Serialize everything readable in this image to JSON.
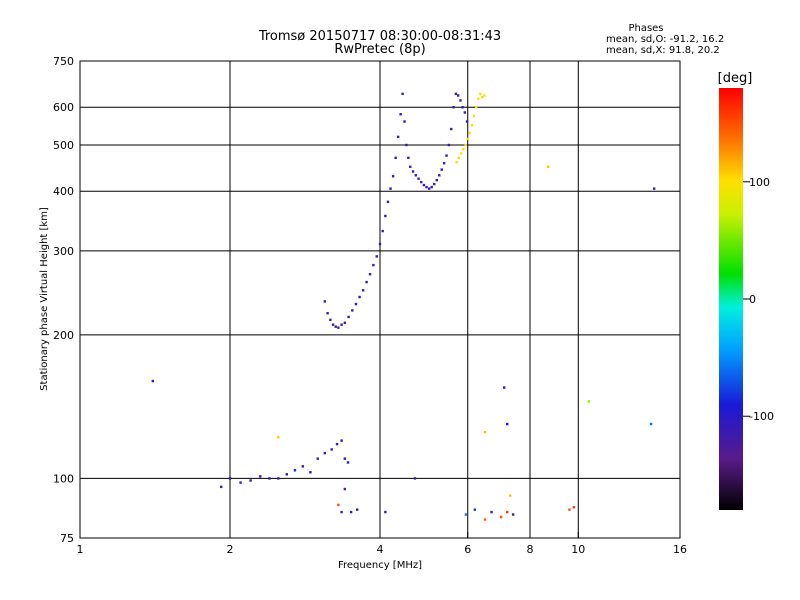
{
  "title_line1": "Tromsø 20150717 08:30:00-08:31:43",
  "title_line2": "RwPretec (8p)",
  "phases_box": {
    "heading": "Phases",
    "line_o": "mean, sd,O: -91.2, 16.2",
    "line_x": "mean, sd,X:  91.8, 20.2"
  },
  "colorbar": {
    "unit_label": "[deg]",
    "ticks": [
      {
        "value": 100,
        "label": "100"
      },
      {
        "value": 0,
        "label": "0"
      },
      {
        "value": -100,
        "label": "-100"
      }
    ],
    "range": [
      -180,
      180
    ]
  },
  "chart_data": {
    "type": "scatter",
    "xlabel": "Frequency [MHz]",
    "ylabel": "Stationary phase Virtual Height [km]",
    "x_scale": "log2",
    "y_scale": "log",
    "xlim": [
      1,
      16
    ],
    "ylim": [
      75,
      750
    ],
    "grid": true,
    "x_ticks": [
      {
        "value": 1,
        "label": "1"
      },
      {
        "value": 2,
        "label": "2"
      },
      {
        "value": 4,
        "label": "4"
      },
      {
        "value": 6,
        "label": "6"
      },
      {
        "value": 8,
        "label": "8"
      },
      {
        "value": 10,
        "label": "10"
      },
      {
        "value": 16,
        "label": "16"
      }
    ],
    "y_ticks": [
      {
        "value": 75,
        "label": "75"
      },
      {
        "value": 100,
        "label": "100"
      },
      {
        "value": 200,
        "label": "200"
      },
      {
        "value": 300,
        "label": "300"
      },
      {
        "value": 400,
        "label": "400"
      },
      {
        "value": 500,
        "label": "500"
      },
      {
        "value": 600,
        "label": "600"
      },
      {
        "value": 750,
        "label": "750"
      }
    ],
    "points_phase_deg": [
      [
        3.1,
        235,
        -118
      ],
      [
        3.14,
        222,
        -115
      ],
      [
        3.18,
        215,
        -120
      ],
      [
        3.22,
        210,
        -112
      ],
      [
        3.26,
        208,
        -118
      ],
      [
        3.3,
        207,
        -110
      ],
      [
        3.35,
        210,
        -116
      ],
      [
        3.4,
        212,
        -120
      ],
      [
        3.46,
        218,
        -112
      ],
      [
        3.52,
        225,
        -118
      ],
      [
        3.58,
        232,
        -110
      ],
      [
        3.64,
        240,
        -115
      ],
      [
        3.7,
        248,
        -118
      ],
      [
        3.76,
        258,
        -112
      ],
      [
        3.82,
        268,
        -116
      ],
      [
        3.88,
        280,
        -110
      ],
      [
        3.94,
        292,
        -118
      ],
      [
        4.0,
        310,
        -114
      ],
      [
        4.05,
        330,
        -120
      ],
      [
        4.1,
        355,
        -112
      ],
      [
        4.15,
        380,
        -118
      ],
      [
        4.2,
        405,
        -110
      ],
      [
        4.25,
        430,
        -116
      ],
      [
        4.3,
        470,
        -112
      ],
      [
        4.35,
        520,
        -118
      ],
      [
        4.4,
        580,
        -114
      ],
      [
        4.44,
        640,
        -116
      ],
      [
        4.48,
        560,
        -110
      ],
      [
        4.52,
        500,
        -118
      ],
      [
        4.56,
        470,
        -112
      ],
      [
        4.6,
        450,
        -116
      ],
      [
        4.66,
        440,
        -118
      ],
      [
        4.72,
        432,
        -110
      ],
      [
        4.78,
        425,
        -114
      ],
      [
        4.84,
        418,
        -118
      ],
      [
        4.9,
        412,
        -112
      ],
      [
        4.96,
        408,
        -116
      ],
      [
        5.02,
        405,
        -110
      ],
      [
        5.08,
        408,
        -118
      ],
      [
        5.14,
        414,
        -114
      ],
      [
        5.2,
        422,
        -112
      ],
      [
        5.26,
        432,
        -118
      ],
      [
        5.32,
        444,
        -110
      ],
      [
        5.38,
        458,
        -116
      ],
      [
        5.44,
        475,
        -112
      ],
      [
        5.5,
        500,
        -118
      ],
      [
        5.56,
        540,
        -114
      ],
      [
        5.62,
        600,
        -110
      ],
      [
        5.68,
        640,
        -116
      ],
      [
        5.74,
        635,
        -118
      ],
      [
        5.8,
        620,
        -112
      ],
      [
        5.86,
        600,
        -110
      ],
      [
        5.92,
        585,
        -116
      ],
      [
        5.98,
        560,
        -118
      ],
      [
        5.7,
        460,
        100
      ],
      [
        5.76,
        470,
        105
      ],
      [
        5.82,
        480,
        98
      ],
      [
        5.88,
        490,
        102
      ],
      [
        5.94,
        500,
        100
      ],
      [
        6.0,
        515,
        104
      ],
      [
        6.06,
        530,
        99
      ],
      [
        6.12,
        550,
        103
      ],
      [
        6.18,
        575,
        100
      ],
      [
        6.24,
        600,
        102
      ],
      [
        6.3,
        625,
        98
      ],
      [
        6.36,
        640,
        101
      ],
      [
        6.42,
        630,
        104
      ],
      [
        6.48,
        635,
        99
      ],
      [
        1.4,
        160,
        -95
      ],
      [
        1.92,
        96,
        -110
      ],
      [
        2.0,
        100,
        -100
      ],
      [
        2.1,
        98,
        -118
      ],
      [
        2.2,
        99,
        -105
      ],
      [
        2.3,
        101,
        -115
      ],
      [
        2.4,
        100,
        -90
      ],
      [
        2.5,
        100,
        -110
      ],
      [
        2.6,
        102,
        -100
      ],
      [
        2.7,
        104,
        -85
      ],
      [
        2.8,
        106,
        -112
      ],
      [
        2.9,
        103,
        -95
      ],
      [
        3.0,
        110,
        -115
      ],
      [
        3.1,
        113,
        -110
      ],
      [
        3.2,
        115,
        -118
      ],
      [
        3.28,
        118,
        -112
      ],
      [
        3.35,
        120,
        -116
      ],
      [
        3.4,
        110,
        -100
      ],
      [
        3.45,
        108,
        -95
      ],
      [
        2.5,
        122,
        110
      ],
      [
        3.3,
        88,
        150
      ],
      [
        3.35,
        85,
        -118
      ],
      [
        3.4,
        95,
        -130
      ],
      [
        3.5,
        85,
        -110
      ],
      [
        3.6,
        86,
        -112
      ],
      [
        4.1,
        85,
        -114
      ],
      [
        4.7,
        100,
        -110
      ],
      [
        5.95,
        84,
        -60
      ],
      [
        6.2,
        86,
        -80
      ],
      [
        6.5,
        82,
        145
      ],
      [
        6.7,
        85,
        -115
      ],
      [
        7.0,
        83,
        150
      ],
      [
        7.2,
        85,
        160
      ],
      [
        7.4,
        84,
        -112
      ],
      [
        7.3,
        92,
        110
      ],
      [
        7.1,
        155,
        -95
      ],
      [
        7.2,
        130,
        -90
      ],
      [
        6.5,
        125,
        110
      ],
      [
        8.7,
        450,
        110
      ],
      [
        9.6,
        86,
        150
      ],
      [
        9.8,
        87,
        160
      ],
      [
        10.5,
        145,
        60
      ],
      [
        14.0,
        130,
        -60
      ],
      [
        14.2,
        405,
        -118
      ]
    ]
  }
}
